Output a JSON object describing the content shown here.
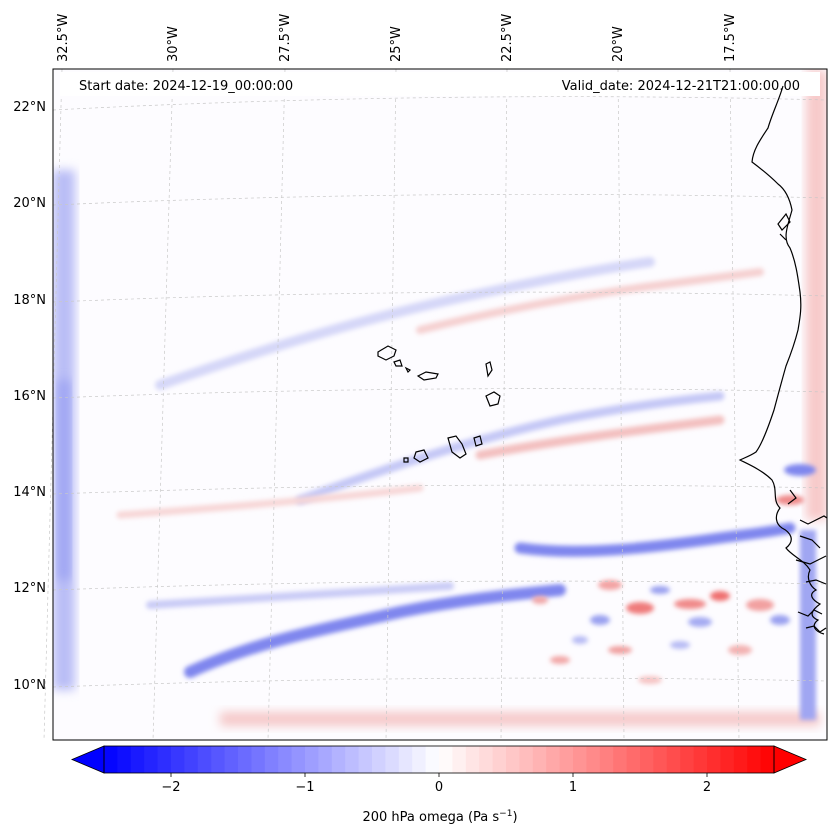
{
  "map": {
    "annotations": {
      "start": "Start date: 2024-12-19_00:00:00",
      "valid": "Valid_date: 2024-12-21T21:00:00.00"
    },
    "longitude_labels": [
      "32.5°W",
      "30°W",
      "27.5°W",
      "25°W",
      "22.5°W",
      "20°W",
      "17.5°W"
    ],
    "latitude_labels": [
      "22°N",
      "20°N",
      "18°N",
      "16°N",
      "14°N",
      "12°N",
      "10°N"
    ],
    "coastline_color": "#000000",
    "gridline_color": "#b0b0b0"
  },
  "colorbar": {
    "label_prefix": "200 hPa omega (Pa s",
    "label_exp": "−1",
    "label_suffix": ")",
    "tick_labels": [
      "−2",
      "−1",
      "0",
      "1",
      "2"
    ],
    "tick_values": [
      -2,
      -1,
      0,
      1,
      2
    ],
    "range": [
      -2.5,
      2.5
    ],
    "extend": "both",
    "colormap": "bwr",
    "colors": {
      "low": "#0000ff",
      "mid": "#ffffff",
      "high": "#ff0000"
    }
  }
}
